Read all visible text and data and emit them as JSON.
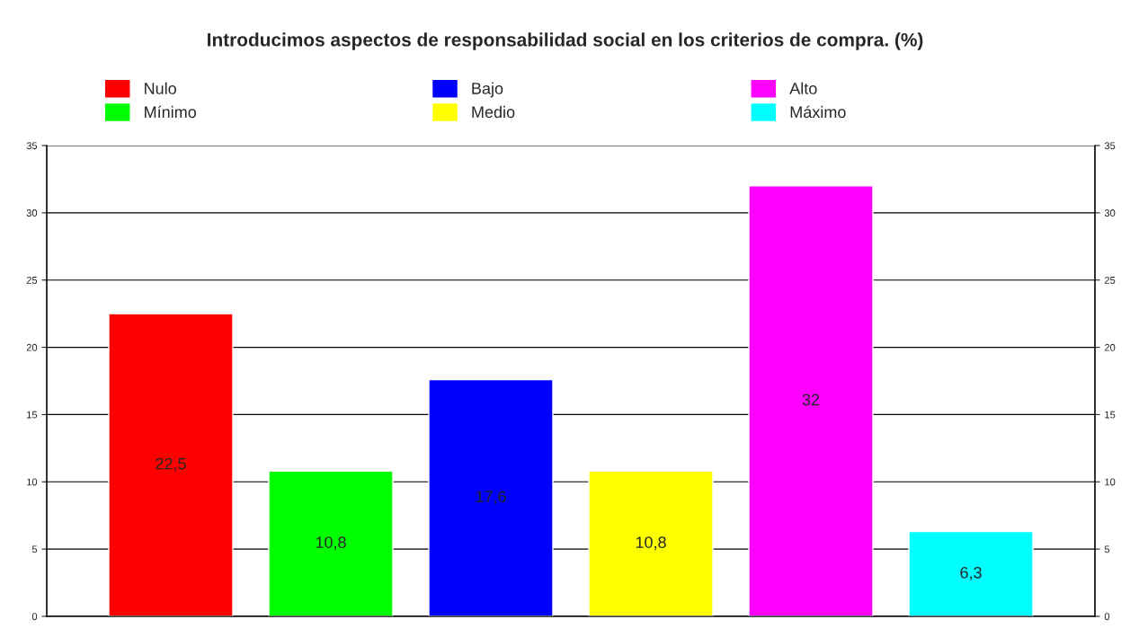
{
  "chart_data": {
    "type": "bar",
    "title": "Introducimos aspectos de responsabilidad social en los criterios de compra. (%)",
    "categories": [
      null
    ],
    "series": [
      {
        "name": "Nulo",
        "color": "#ff0000",
        "values": [
          22.5
        ],
        "value_labels": [
          "22,5"
        ]
      },
      {
        "name": "Mínimo",
        "color": "#00ff00",
        "values": [
          10.8
        ],
        "value_labels": [
          "10,8"
        ]
      },
      {
        "name": "Bajo",
        "color": "#0000ff",
        "values": [
          17.6
        ],
        "value_labels": [
          "17,6"
        ]
      },
      {
        "name": "Medio",
        "color": "#ffff00",
        "values": [
          10.8
        ],
        "value_labels": [
          "10,8"
        ]
      },
      {
        "name": "Alto",
        "color": "#ff00ff",
        "values": [
          32
        ],
        "value_labels": [
          "32"
        ]
      },
      {
        "name": "Máximo",
        "color": "#00ffff",
        "values": [
          6.3
        ],
        "value_labels": [
          "6,3"
        ]
      }
    ],
    "ylim": [
      0,
      35
    ],
    "yticks": [
      0,
      5,
      10,
      15,
      20,
      25,
      30,
      35
    ],
    "y2lim": [
      0,
      35
    ],
    "y2ticks": [
      0,
      5,
      10,
      15,
      20,
      25,
      30,
      35
    ],
    "grid": "y",
    "legend": "top"
  }
}
